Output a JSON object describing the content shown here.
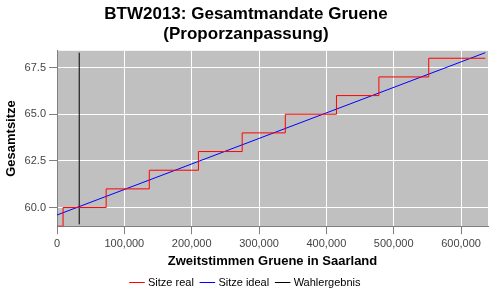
{
  "chart_data": {
    "type": "line",
    "title": [
      "BTW2013: Gesamtmandate Gruene",
      "(Proporzanpassung)"
    ],
    "x_label": "Zweitstimmen Gruene in Saarland",
    "y_label": "Gesamtsitze",
    "xlim": [
      0,
      640000
    ],
    "xticks": [
      0,
      {
        "value": 100000,
        "label": "100,000"
      },
      {
        "value": 200000,
        "label": "200,000"
      },
      {
        "value": 300000,
        "label": "300,000"
      },
      {
        "value": 400000,
        "label": "400,000"
      },
      {
        "value": 500000,
        "label": "500,000"
      },
      {
        "value": 600000,
        "label": "600,000"
      }
    ],
    "ylim": [
      59.0,
      68.4
    ],
    "yticks": [
      {
        "value": 60,
        "label": "60.0"
      },
      62.5,
      {
        "value": 65,
        "label": "65.0"
      },
      67.5
    ],
    "grid": true,
    "legend": "bottom",
    "series": [
      {
        "name": "Sitze real",
        "color": "#ff0000",
        "line_style": "step",
        "marker": "none",
        "x": [
          0,
          9000,
          73000,
          137000,
          210000,
          275000,
          339000,
          415000,
          478000,
          552000,
          636000
        ],
        "values": [
          59,
          60,
          61,
          62,
          63,
          64,
          65,
          66,
          67,
          68,
          68
        ]
      },
      {
        "name": "Sitze ideal",
        "color": "#0000ff",
        "line_style": "solid",
        "marker": "none",
        "x": [
          0,
          636000
        ],
        "values": [
          59.6,
          68.3
        ]
      },
      {
        "name": "Wahlergebnis",
        "color": "#000000",
        "line_style": "solid",
        "marker": "none",
        "x": [
          33000,
          33000
        ],
        "values": [
          59.1,
          68.3
        ]
      }
    ]
  }
}
